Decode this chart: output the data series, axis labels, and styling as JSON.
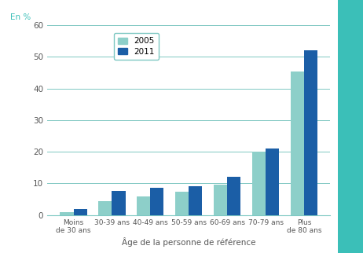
{
  "categories": [
    "Moins\nde 30 ans",
    "30-39 ans",
    "40-49 ans",
    "50-59 ans",
    "60-69 ans",
    "70-79 ans",
    "Plus\nde 80 ans"
  ],
  "values_2005": [
    1.0,
    4.5,
    6.0,
    7.5,
    9.5,
    20.0,
    45.5
  ],
  "values_2011": [
    2.0,
    7.7,
    8.7,
    9.0,
    12.2,
    21.0,
    52.0
  ],
  "color_2005": "#8dcfc9",
  "color_2011": "#1b5ea6",
  "ylabel": "En %",
  "xlabel": "Âge de la personne de référence",
  "legend_2005": "2005",
  "legend_2011": "2011",
  "ylim": [
    0,
    60
  ],
  "yticks": [
    0,
    10,
    20,
    30,
    40,
    50,
    60
  ],
  "background_color": "#ffffff",
  "grid_color": "#7ec8c2",
  "axis_color": "#7ec8c2",
  "teal_sidebar_color": "#3bbfb8",
  "bar_width": 0.35,
  "label_color": "#555555",
  "teal_text_color": "#3bbfb8"
}
